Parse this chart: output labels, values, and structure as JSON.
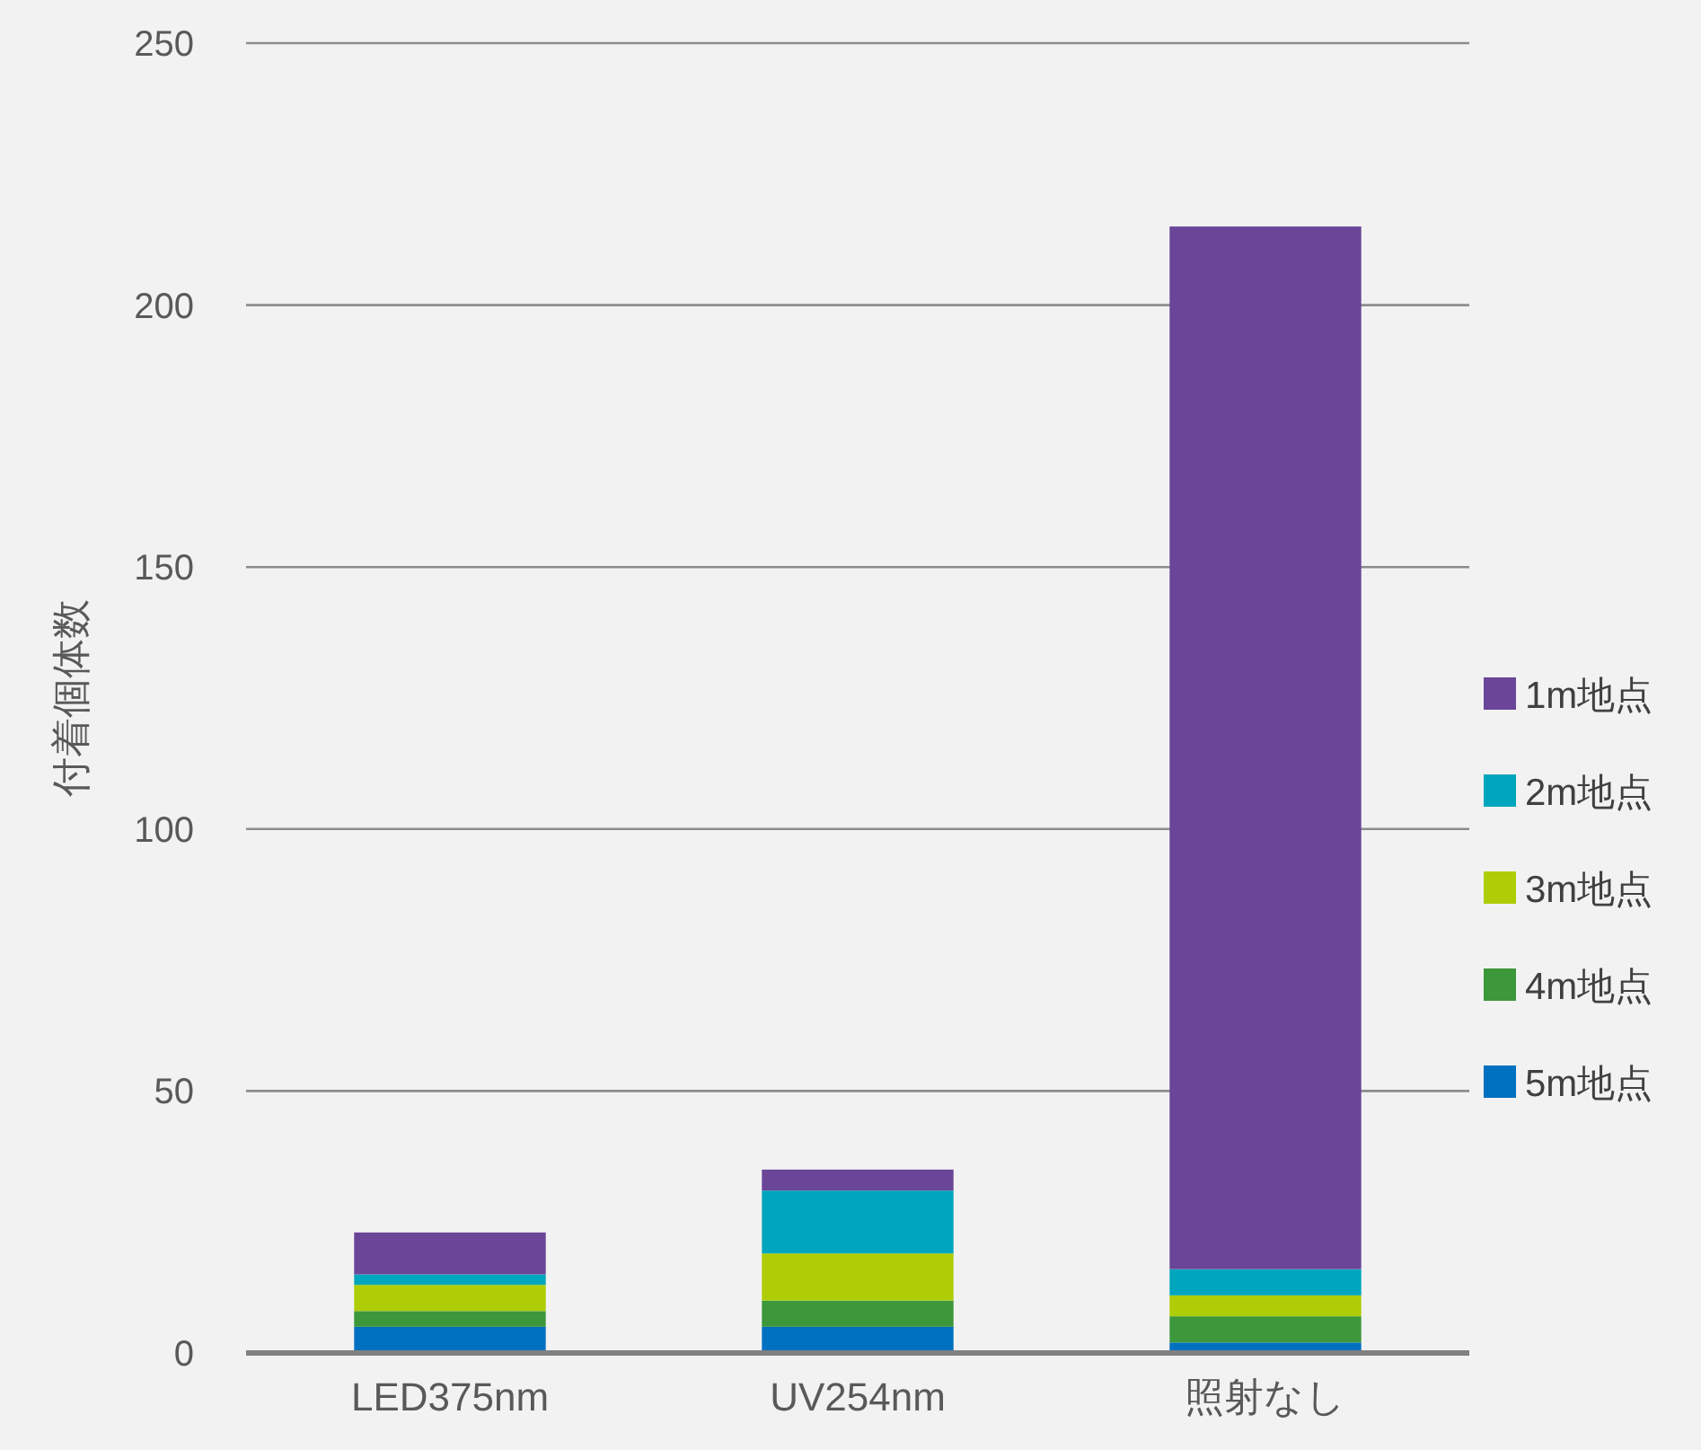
{
  "chart_data": {
    "type": "bar",
    "stacked": true,
    "ylabel": "付着個体数",
    "categories": [
      "LED375nm",
      "UV254nm",
      "照射なし"
    ],
    "series": [
      {
        "name": "5m地点",
        "color": "#0070c0",
        "values": [
          5,
          5,
          2
        ]
      },
      {
        "name": "4m地点",
        "color": "#3d973b",
        "values": [
          3,
          5,
          5
        ]
      },
      {
        "name": "3m地点",
        "color": "#aecd06",
        "values": [
          5,
          9,
          4
        ]
      },
      {
        "name": "2m地点",
        "color": "#00a6bd",
        "values": [
          2,
          12,
          5
        ]
      },
      {
        "name": "1m地点",
        "color": "#6a4598",
        "values": [
          8,
          4,
          199
        ]
      }
    ],
    "ylim": [
      0,
      250
    ],
    "yticks": [
      0,
      50,
      100,
      150,
      200,
      250
    ],
    "grid": "y",
    "legend": "right"
  }
}
